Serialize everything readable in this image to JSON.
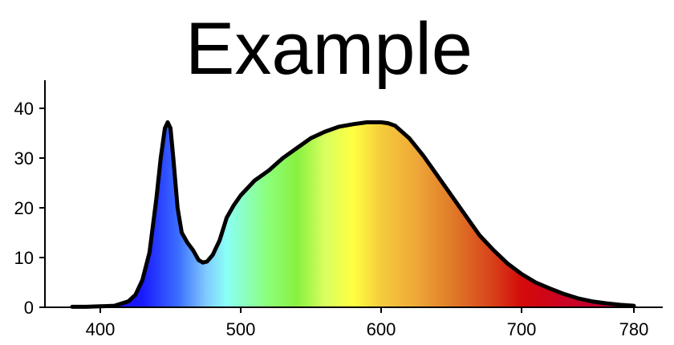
{
  "chart_data": {
    "type": "area",
    "title": "Example",
    "xlabel": "",
    "ylabel": "",
    "xlim": [
      360,
      800
    ],
    "ylim": [
      0,
      45
    ],
    "x_ticks": [
      400,
      500,
      600,
      700,
      780
    ],
    "y_ticks": [
      0,
      10,
      20,
      30,
      40
    ],
    "grid": false,
    "fill": "visible-spectrum-gradient",
    "line_color": "#000000",
    "spectrum_colors": [
      {
        "nm": 380,
        "color": "#1a00c8"
      },
      {
        "nm": 430,
        "color": "#1a1aff"
      },
      {
        "nm": 455,
        "color": "#3a6cff"
      },
      {
        "nm": 475,
        "color": "#80c8ff"
      },
      {
        "nm": 490,
        "color": "#8afff5"
      },
      {
        "nm": 520,
        "color": "#8cff78"
      },
      {
        "nm": 540,
        "color": "#88f040"
      },
      {
        "nm": 560,
        "color": "#d8ff60"
      },
      {
        "nm": 580,
        "color": "#ffff40"
      },
      {
        "nm": 600,
        "color": "#f5cc3c"
      },
      {
        "nm": 625,
        "color": "#eea838"
      },
      {
        "nm": 650,
        "color": "#e07c28"
      },
      {
        "nm": 680,
        "color": "#d8401a"
      },
      {
        "nm": 700,
        "color": "#d40a0a"
      },
      {
        "nm": 740,
        "color": "#c8002a"
      },
      {
        "nm": 780,
        "color": "#b0003a"
      }
    ],
    "series": [
      {
        "x": [
          380,
          390,
          400,
          410,
          420,
          425,
          430,
          435,
          440,
          443,
          446,
          448,
          450,
          452,
          455,
          458,
          462,
          466,
          470,
          473,
          476,
          480,
          485,
          490,
          495,
          500,
          510,
          520,
          530,
          540,
          550,
          560,
          570,
          580,
          590,
          600,
          605,
          610,
          620,
          630,
          640,
          650,
          660,
          670,
          680,
          690,
          700,
          710,
          720,
          730,
          740,
          750,
          760,
          770,
          780
        ],
        "y": [
          0.1,
          0.1,
          0.2,
          0.3,
          1.2,
          2.5,
          5.5,
          11,
          22,
          30,
          36,
          37.2,
          36,
          30,
          20,
          15,
          13,
          11.5,
          9.5,
          9,
          9.2,
          10.5,
          13.5,
          18,
          20.5,
          22.5,
          25.5,
          27.5,
          30,
          32,
          34,
          35.3,
          36.3,
          36.8,
          37.2,
          37.2,
          37,
          36.5,
          34,
          30.5,
          26.5,
          22.5,
          18.5,
          14.5,
          11.5,
          8.8,
          6.7,
          5,
          3.8,
          2.7,
          1.8,
          1.2,
          0.8,
          0.5,
          0.3
        ]
      }
    ]
  }
}
